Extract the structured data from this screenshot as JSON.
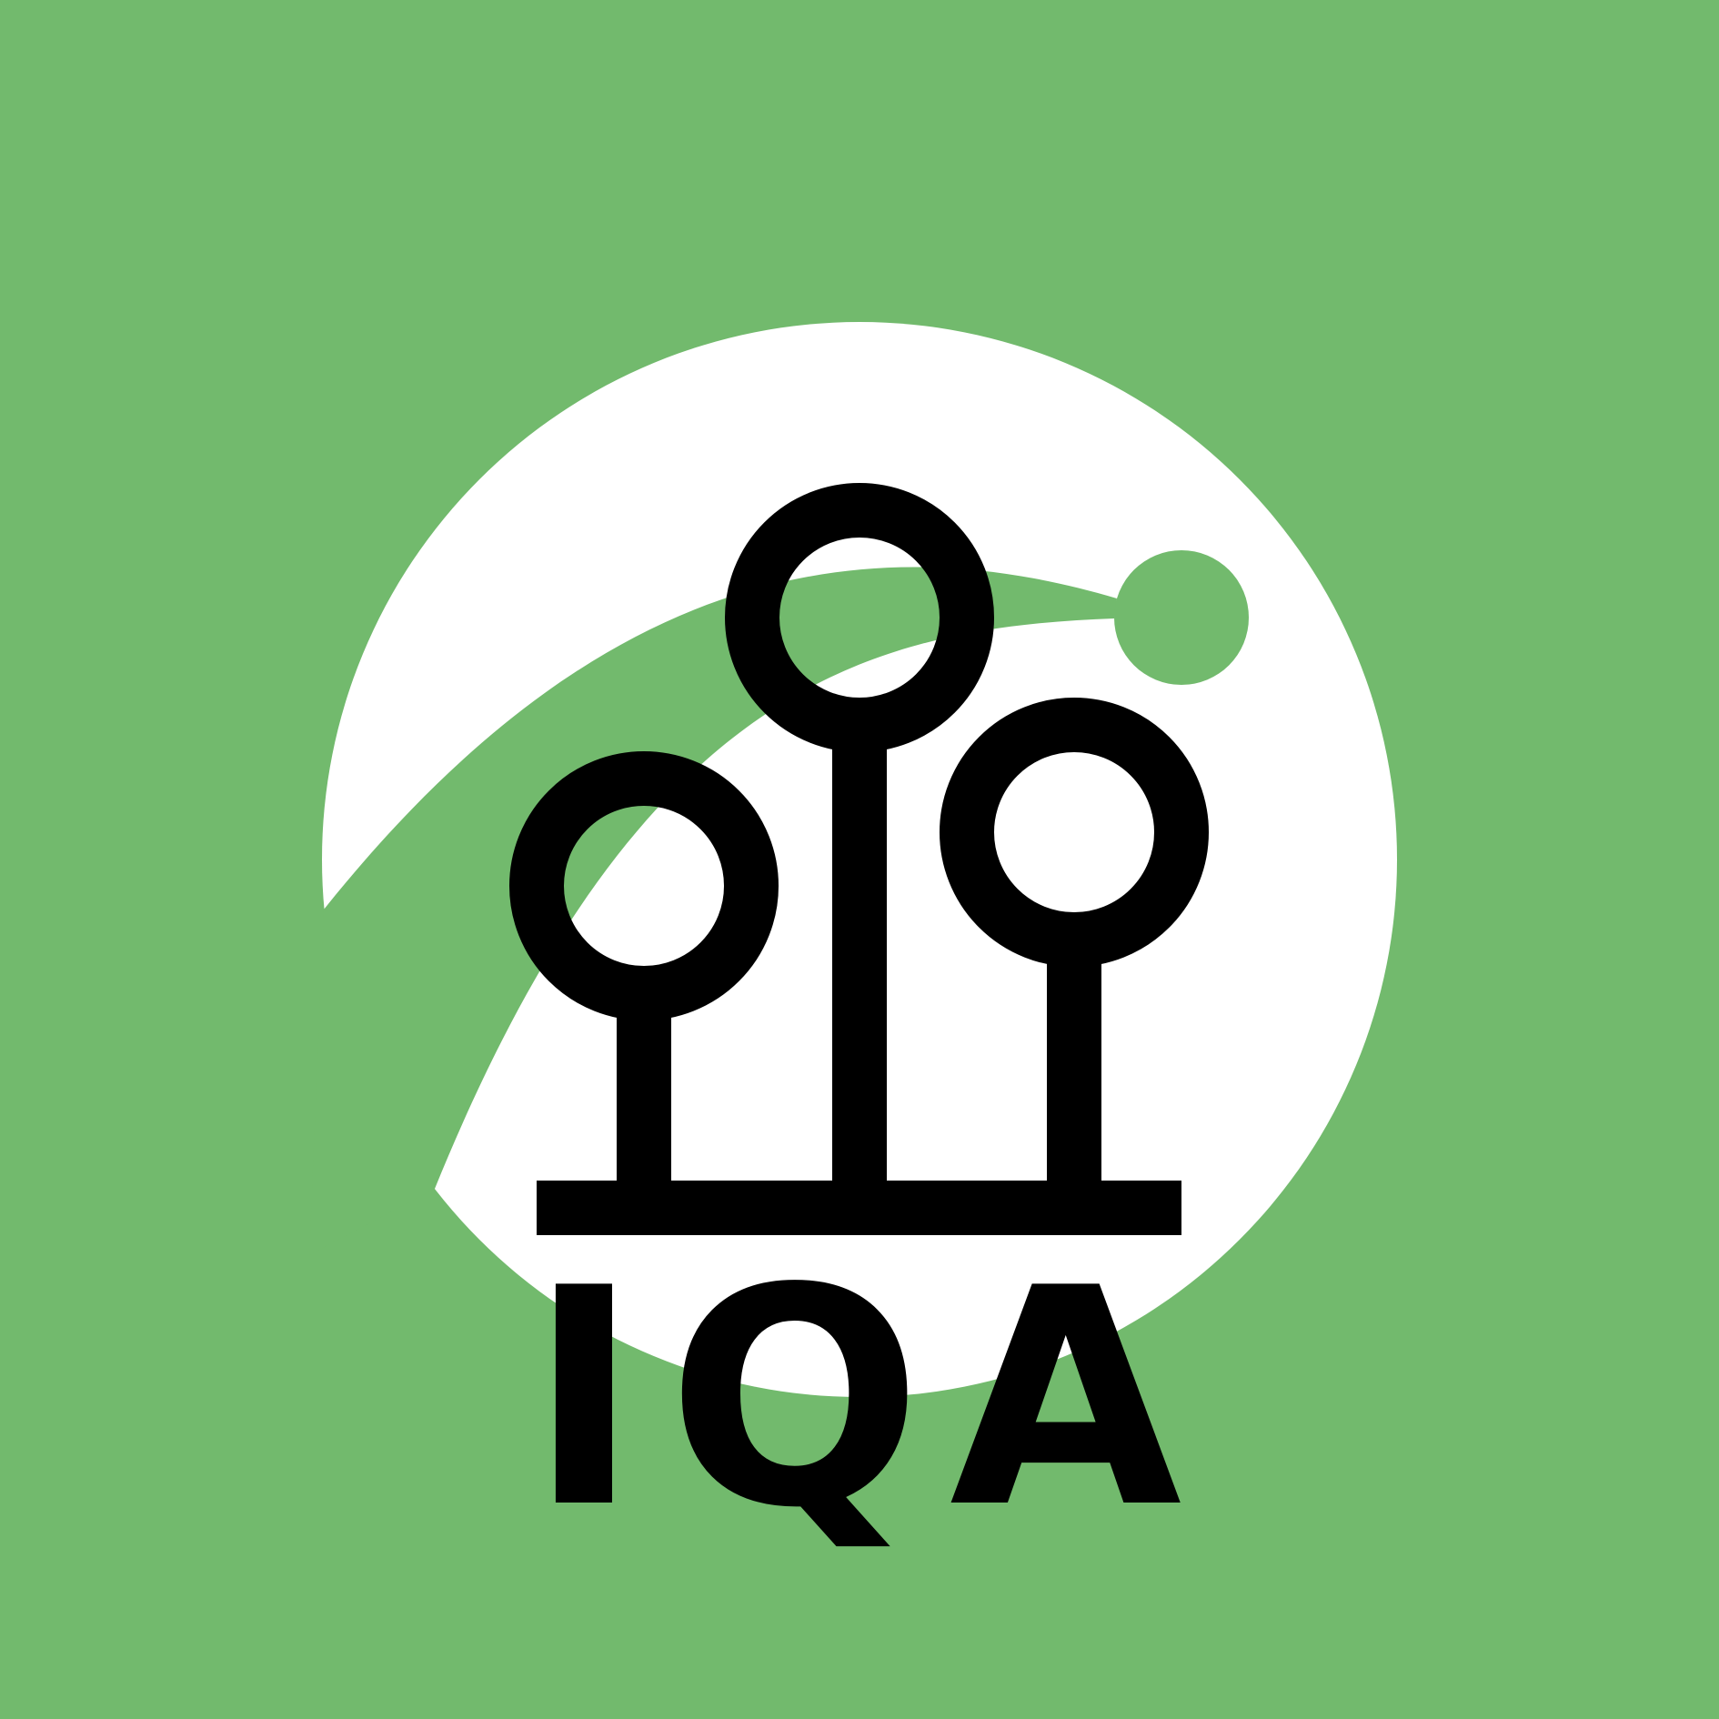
{
  "logo": {
    "wordmark": "IQA"
  },
  "colors": {
    "background": "#72ba6d",
    "circle": "#ffffff",
    "swoosh": "#72ba6d",
    "mark": "#000000"
  }
}
